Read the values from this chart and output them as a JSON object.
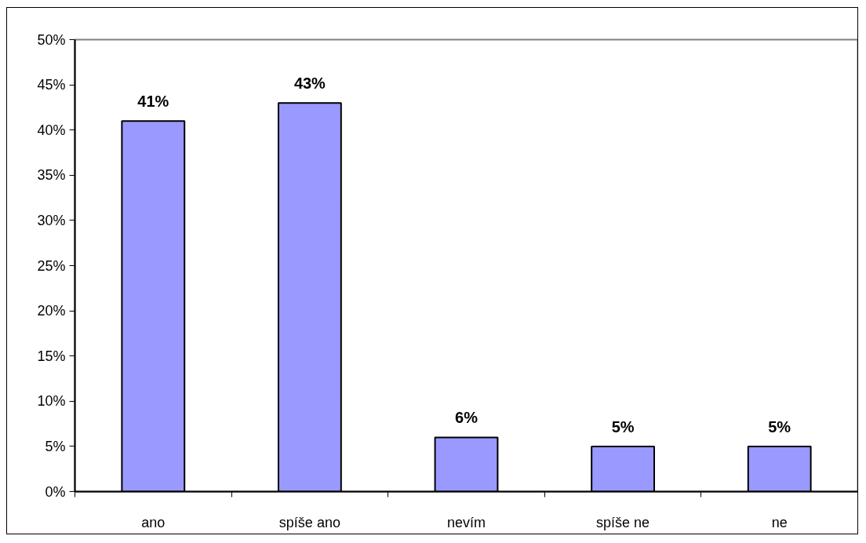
{
  "chart_data": {
    "type": "bar",
    "categories": [
      "ano",
      "spíše ano",
      "nevím",
      "spíše ne",
      "ne"
    ],
    "values": [
      41,
      43,
      6,
      5,
      5
    ],
    "color": "#9999ff",
    "value_labels": [
      "41%",
      "43%",
      "6%",
      "5%",
      "5%"
    ],
    "ylim": [
      0,
      50
    ],
    "yticks": [
      {
        "value": 0,
        "label": "0%"
      },
      {
        "value": 5,
        "label": "5%"
      },
      {
        "value": 10,
        "label": "10%"
      },
      {
        "value": 15,
        "label": "15%"
      },
      {
        "value": 20,
        "label": "20%"
      },
      {
        "value": 25,
        "label": "25%"
      },
      {
        "value": 30,
        "label": "30%"
      },
      {
        "value": 35,
        "label": "35%"
      },
      {
        "value": 40,
        "label": "40%"
      },
      {
        "value": 45,
        "label": "45%"
      },
      {
        "value": 50,
        "label": "50%"
      }
    ]
  }
}
